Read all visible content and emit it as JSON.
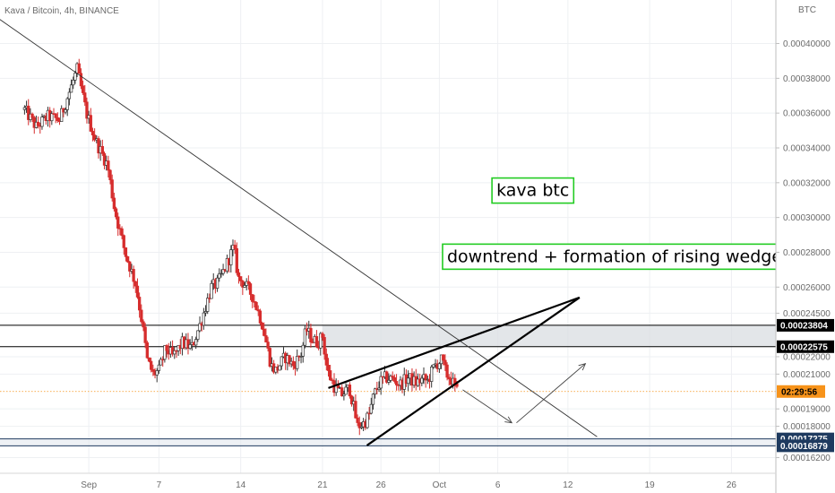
{
  "header": {
    "symbol": "Kava / Bitcoin, 4h, BINANCE",
    "currency": "BTC"
  },
  "colors": {
    "up": "#ffffff",
    "down": "#d62d2d",
    "wick": "#333333",
    "countdown_bg": "#f7931a",
    "annotation_border": "#22cc22"
  },
  "chart_data": {
    "type": "candlestick",
    "symbol": "Kava / Bitcoin",
    "timeframe": "4h",
    "exchange": "BINANCE",
    "y_unit": "BTC",
    "ylim": [
      0.000153,
      0.000425
    ],
    "y_ticks": [
      "0.00040000",
      "0.00038000",
      "0.00036000",
      "0.00034000",
      "0.00032000",
      "0.00030000",
      "0.00028000",
      "0.00026000",
      "0.00024500",
      "0.00022000",
      "0.00021000",
      "0.00019000",
      "0.00018000",
      "0.00016200"
    ],
    "x_labels": [
      {
        "label": "Sep",
        "day": 0
      },
      {
        "label": "7",
        "day": 6
      },
      {
        "label": "14",
        "day": 13
      },
      {
        "label": "21",
        "day": 20
      },
      {
        "label": "26",
        "day": 25
      },
      {
        "label": "Oct",
        "day": 30
      },
      {
        "label": "6",
        "day": 35
      },
      {
        "label": "12",
        "day": 41
      },
      {
        "label": "19",
        "day": 48
      },
      {
        "label": "26",
        "day": 55
      }
    ],
    "price_path": [
      [
        -5.5,
        0.000362
      ],
      [
        -4.5,
        0.000352
      ],
      [
        -3.5,
        0.000358
      ],
      [
        -2.5,
        0.000356
      ],
      [
        -1.0,
        0.000385
      ],
      [
        -0.2,
        0.00036
      ],
      [
        0.6,
        0.000344
      ],
      [
        1.6,
        0.00033
      ],
      [
        2.2,
        0.000305
      ],
      [
        3.1,
        0.00028
      ],
      [
        4.0,
        0.000262
      ],
      [
        4.6,
        0.000238
      ],
      [
        5.0,
        0.000218
      ],
      [
        5.5,
        0.00021
      ],
      [
        6.0,
        0.000212
      ],
      [
        6.6,
        0.000225
      ],
      [
        7.2,
        0.00022
      ],
      [
        8.0,
        0.000228
      ],
      [
        8.8,
        0.000225
      ],
      [
        9.6,
        0.00024
      ],
      [
        10.5,
        0.00026
      ],
      [
        11.0,
        0.000262
      ],
      [
        11.6,
        0.00027
      ],
      [
        12.4,
        0.000283
      ],
      [
        12.8,
        0.000265
      ],
      [
        13.3,
        0.000262
      ],
      [
        14.0,
        0.000255
      ],
      [
        14.8,
        0.00024
      ],
      [
        15.6,
        0.000215
      ],
      [
        16.0,
        0.000212
      ],
      [
        16.8,
        0.00022
      ],
      [
        17.5,
        0.000215
      ],
      [
        18.2,
        0.000222
      ],
      [
        18.6,
        0.000236
      ],
      [
        19.1,
        0.00023
      ],
      [
        19.6,
        0.000228
      ],
      [
        20.0,
        0.000232
      ],
      [
        20.4,
        0.000212
      ],
      [
        21.0,
        0.000203
      ],
      [
        21.6,
        0.000198
      ],
      [
        22.3,
        0.000202
      ],
      [
        22.6,
        0.000193
      ],
      [
        23.0,
        0.00018
      ],
      [
        23.6,
        0.000182
      ],
      [
        24.0,
        0.000187
      ],
      [
        24.4,
        0.000198
      ],
      [
        24.9,
        0.000205
      ],
      [
        25.4,
        0.000208
      ],
      [
        26.0,
        0.000207
      ],
      [
        26.7,
        0.000204
      ],
      [
        27.3,
        0.000208
      ],
      [
        28.0,
        0.000205
      ],
      [
        28.6,
        0.000207
      ],
      [
        29.0,
        0.000206
      ],
      [
        29.6,
        0.000215
      ],
      [
        30.2,
        0.000218
      ],
      [
        30.6,
        0.00021
      ],
      [
        31.0,
        0.000207
      ],
      [
        31.5,
        0.0002
      ]
    ],
    "horizontal_levels": [
      {
        "price": 0.00023804,
        "label": "0.00023804",
        "color": "#000000"
      },
      {
        "price": 0.00022575,
        "label": "0.00022575",
        "color": "#000000"
      },
      {
        "price": 0.00017275,
        "label": "0.00017275",
        "color": "#1e3a5f"
      },
      {
        "price": 0.00016879,
        "label": "0.00016879",
        "color": "#1e3a5f"
      }
    ],
    "current_price": 0.0002,
    "countdown": "02:29:56",
    "trendlines": [
      {
        "name": "downtrend",
        "from": [
          -10,
          0.000425
        ],
        "to": [
          43.5,
          0.000174
        ],
        "width": 0.9,
        "color": "#333333"
      },
      {
        "name": "wedge-upper",
        "from": [
          20.5,
          0.000202
        ],
        "to": [
          42,
          0.000254
        ],
        "width": 2.2,
        "color": "#000000"
      },
      {
        "name": "wedge-lower",
        "from": [
          23.8,
          0.000169
        ],
        "to": [
          42,
          0.000254
        ],
        "width": 2.2,
        "color": "#000000"
      }
    ],
    "arrows": [
      {
        "from": [
          32.0,
          0.000201
        ],
        "to": [
          36.2,
          0.000182
        ]
      },
      {
        "from": [
          36.6,
          0.000182
        ],
        "to": [
          42.5,
          0.000216
        ]
      }
    ],
    "annotations": [
      {
        "text": "kava btc",
        "at": [
          38.0,
          0.000316
        ]
      },
      {
        "text": "downtrend + formation of rising wedge",
        "at": [
          45.0,
          0.000278
        ]
      }
    ]
  }
}
